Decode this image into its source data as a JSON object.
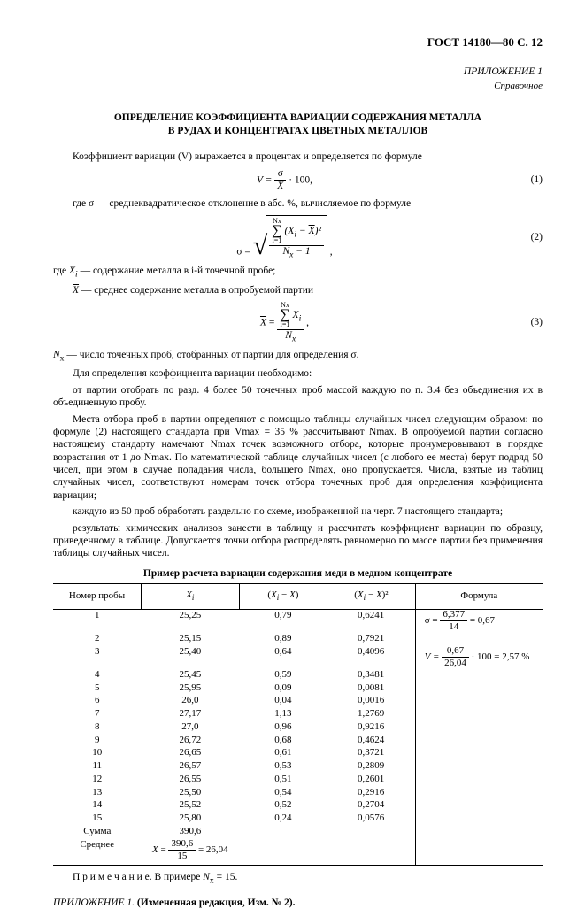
{
  "header": {
    "doc_id": "ГОСТ 14180—80 С. 12"
  },
  "appendix": {
    "title": "ПРИЛОЖЕНИЕ 1",
    "subtitle": "Справочное"
  },
  "title": {
    "line1": "ОПРЕДЕЛЕНИЕ КОЭФФИЦИЕНТА ВАРИАЦИИ СОДЕРЖАНИЯ МЕТАЛЛА",
    "line2": "В РУДАХ И КОНЦЕНТРАТАХ ЦВЕТНЫХ МЕТАЛЛОВ"
  },
  "text": {
    "p1": "Коэффициент вариации (V) выражается в процентах и определяется по формуле",
    "where_sigma": "где σ — среднеквадратическое отклонение в абс. %, вычисляемое по формуле",
    "where_xi_pre": "где ",
    "where_xi_sym": "X",
    "where_xi_sub": "i",
    "where_xi_post": " — содержание металла в i-й точечной пробе;",
    "where_xbar_pre": "X",
    "where_xbar_post": " — среднее содержание металла в опробуемой партии",
    "where_ns_pre": "N",
    "where_ns_sub": "x",
    "where_ns_post": " — число точечных проб, отобранных от партии для определения σ.",
    "p2": "Для определения коэффициента вариации необходимо:",
    "p3": "от партии отобрать по разд. 4 более 50 точечных проб массой каждую по п. 3.4 без объединения их в объединенную пробу.",
    "p4": "Места отбора проб в партии определяют с помощью таблицы случайных чисел следующим образом: по формуле (2) настоящего стандарта при Vmax = 35 % рассчитывают Nmax. В опробуемой партии согласно настоящему стандарту намечают Nmax точек возможного отбора, которые пронумеровывают в порядке возрастания от 1 до Nmax. По математической таблице случайных чисел (с любого ее места) берут подряд 50 чисел, при этом в случае попадания числа, большего Nmax, оно пропускается. Числа, взятые из таблиц случайных чисел, соответствуют номерам точек отбора точечных проб для определения коэффициента вариации;",
    "p5": "каждую из 50 проб обработать раздельно по схеме, изображенной на черт. 7 настоящего стандарта;",
    "p6": "результаты химических анализов занести в таблицу и рассчитать коэффициент вариации по образцу, приведенному в таблице. Допускается точки отбора распределять равномерно по массе партии без применения таблицы случайных чисел."
  },
  "formulas": {
    "f1": {
      "lhs": "V =",
      "num": "σ",
      "den": "X",
      "tail": "· 100,",
      "eq": "(1)"
    },
    "f2": {
      "lhs": "σ =",
      "sum_top": "Nx",
      "sum_bot": "i=1",
      "body": "(Xi − X̄)²",
      "den": "Nx − 1",
      "tail": ",",
      "eq": "(2)"
    },
    "f3": {
      "lhs": "X̄ =",
      "sum_top": "Nx",
      "sum_bot": "i=1",
      "num_tail": "Xi",
      "den": "Nx",
      "tail": ",",
      "eq": "(3)"
    }
  },
  "table": {
    "title": "Пример расчета вариации содержания меди в медном концентрате",
    "columns": [
      "Номер пробы",
      "Xi",
      "(Xi − X̄)",
      "(Xi − X̄)²",
      "Формула"
    ],
    "widths": [
      "18%",
      "20%",
      "18%",
      "18%",
      "26%"
    ],
    "rows": [
      [
        "1",
        "25,25",
        "0,79",
        "0,6241"
      ],
      [
        "2",
        "25,15",
        "0,89",
        "0,7921"
      ],
      [
        "3",
        "25,40",
        "0,64",
        "0,4096"
      ],
      [
        "4",
        "25,45",
        "0,59",
        "0,3481"
      ],
      [
        "5",
        "25,95",
        "0,09",
        "0,0081"
      ],
      [
        "6",
        "26,0",
        "0,04",
        "0,0016"
      ],
      [
        "7",
        "27,17",
        "1,13",
        "1,2769"
      ],
      [
        "8",
        "27,0",
        "0,96",
        "0,9216"
      ],
      [
        "9",
        "26,72",
        "0,68",
        "0,4624"
      ],
      [
        "10",
        "26,65",
        "0,61",
        "0,3721"
      ],
      [
        "11",
        "26,57",
        "0,53",
        "0,2809"
      ],
      [
        "12",
        "26,55",
        "0,51",
        "0,2601"
      ],
      [
        "13",
        "25,50",
        "0,54",
        "0,2916"
      ],
      [
        "14",
        "25,52",
        "0,52",
        "0,2704"
      ],
      [
        "15",
        "25,80",
        "0,24",
        "0,0576"
      ]
    ],
    "sum_label": "Сумма",
    "sum_val": "390,6",
    "avg_label": "Среднее",
    "avg_frac_num": "390,6",
    "avg_frac_den": "15",
    "avg_result": " = 26,04",
    "avg_prefix": "X̄ = ",
    "formula_col": {
      "sigma_num": "6,377",
      "sigma_den": "14",
      "sigma_res": " = 0,67",
      "sigma_pre": "σ = ",
      "v_pre": "V = ",
      "v_num": "0,67",
      "v_den": "26,04",
      "v_tail": " · 100 = 2,57 %"
    },
    "note_pre": "П р и м е ч а н и е. В примере ",
    "note_sym": "N",
    "note_sub": "x",
    "note_post": " = 15."
  },
  "footer": {
    "prefix": "ПРИЛОЖЕНИЕ 1. ",
    "bold": "(Измененная редакция, Изм. № 2)."
  }
}
